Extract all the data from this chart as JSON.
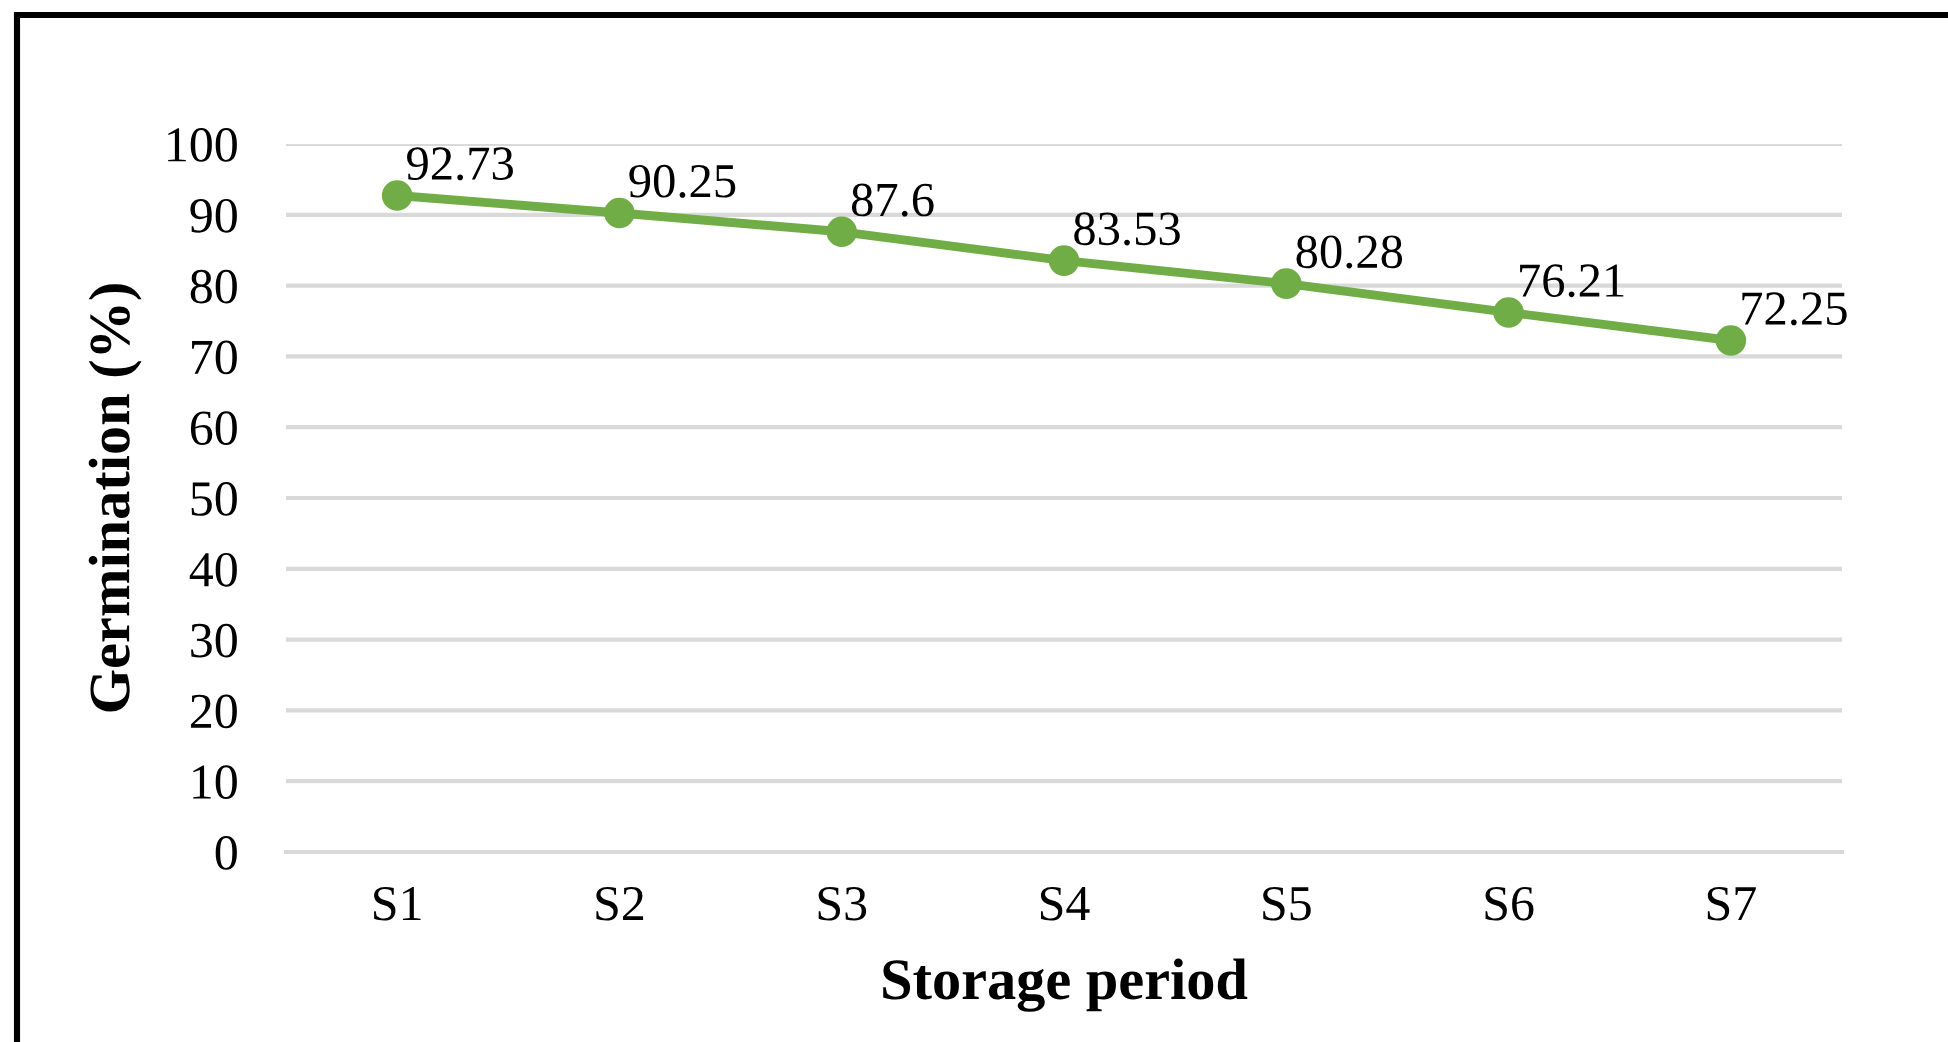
{
  "chart_data": {
    "type": "line",
    "xlabel": "Storage period",
    "ylabel": "Germination (%)",
    "categories": [
      "S1",
      "S2",
      "S3",
      "S4",
      "S5",
      "S6",
      "S7"
    ],
    "series": [
      {
        "color": "#70ad47",
        "values": [
          92.73,
          90.25,
          87.6,
          83.53,
          80.28,
          76.21,
          72.25
        ]
      }
    ],
    "ylim": [
      0,
      100
    ],
    "yticks": [
      0,
      10,
      20,
      30,
      40,
      50,
      60,
      70,
      80,
      90,
      100
    ],
    "grid": "y",
    "marker": "circle",
    "line_style": "solid",
    "data_labels": true
  }
}
